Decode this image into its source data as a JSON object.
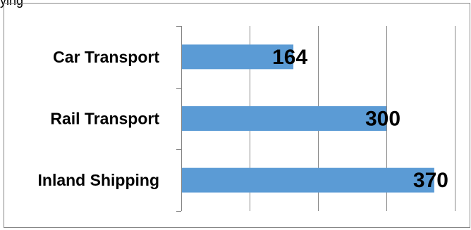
{
  "page": {
    "top_text": "ying"
  },
  "chart_data": {
    "type": "bar",
    "orientation": "horizontal",
    "categories": [
      "Car Transport",
      "Rail Transport",
      "Inland Shipping"
    ],
    "values": [
      164,
      300,
      370
    ],
    "data_labels": [
      "164",
      "300",
      "370"
    ],
    "xlim": [
      0,
      400
    ],
    "grid": true,
    "legend": "none",
    "bar_color": "#5B9BD5",
    "gridline_color": "#868686",
    "frame_color": "#868686"
  }
}
